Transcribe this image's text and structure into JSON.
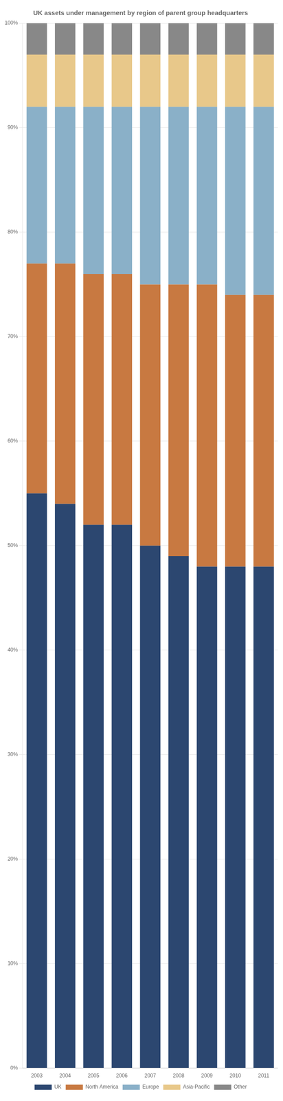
{
  "chart_data": {
    "type": "bar",
    "title": "UK assets under management by region of parent group headquarters",
    "categories": [
      "2003",
      "2004",
      "2005",
      "2006",
      "2007",
      "2008",
      "2009",
      "2010",
      "2011"
    ],
    "series": [
      {
        "name": "UK",
        "color": "#2c4770",
        "values": [
          55,
          54,
          52,
          52,
          50,
          49,
          48,
          48,
          48
        ]
      },
      {
        "name": "North America",
        "color": "#c87941",
        "values": [
          22,
          23,
          24,
          24,
          25,
          26,
          27,
          26,
          26
        ]
      },
      {
        "name": "Europe",
        "color": "#8ab0c8",
        "values": [
          15,
          15,
          16,
          16,
          17,
          17,
          17,
          18,
          18
        ]
      },
      {
        "name": "Asia-Pacific",
        "color": "#e8c88a",
        "values": [
          5,
          5,
          5,
          5,
          5,
          5,
          5,
          5,
          5
        ]
      },
      {
        "name": "Other",
        "color": "#888888",
        "values": [
          3,
          3,
          3,
          3,
          3,
          3,
          3,
          3,
          3
        ]
      }
    ],
    "stacked": true,
    "ylim": [
      0,
      100
    ],
    "yticks": [
      {
        "value": 0,
        "label": "0%"
      },
      {
        "value": 10,
        "label": "10%"
      },
      {
        "value": 20,
        "label": "20%"
      },
      {
        "value": 30,
        "label": "30%"
      },
      {
        "value": 40,
        "label": "40%"
      },
      {
        "value": 50,
        "label": "50%"
      },
      {
        "value": 60,
        "label": "60%"
      },
      {
        "value": 70,
        "label": "70%"
      },
      {
        "value": 80,
        "label": "80%"
      },
      {
        "value": 90,
        "label": "90%"
      },
      {
        "value": 100,
        "label": "100%"
      }
    ],
    "grid": "y",
    "legend": "bottom"
  }
}
